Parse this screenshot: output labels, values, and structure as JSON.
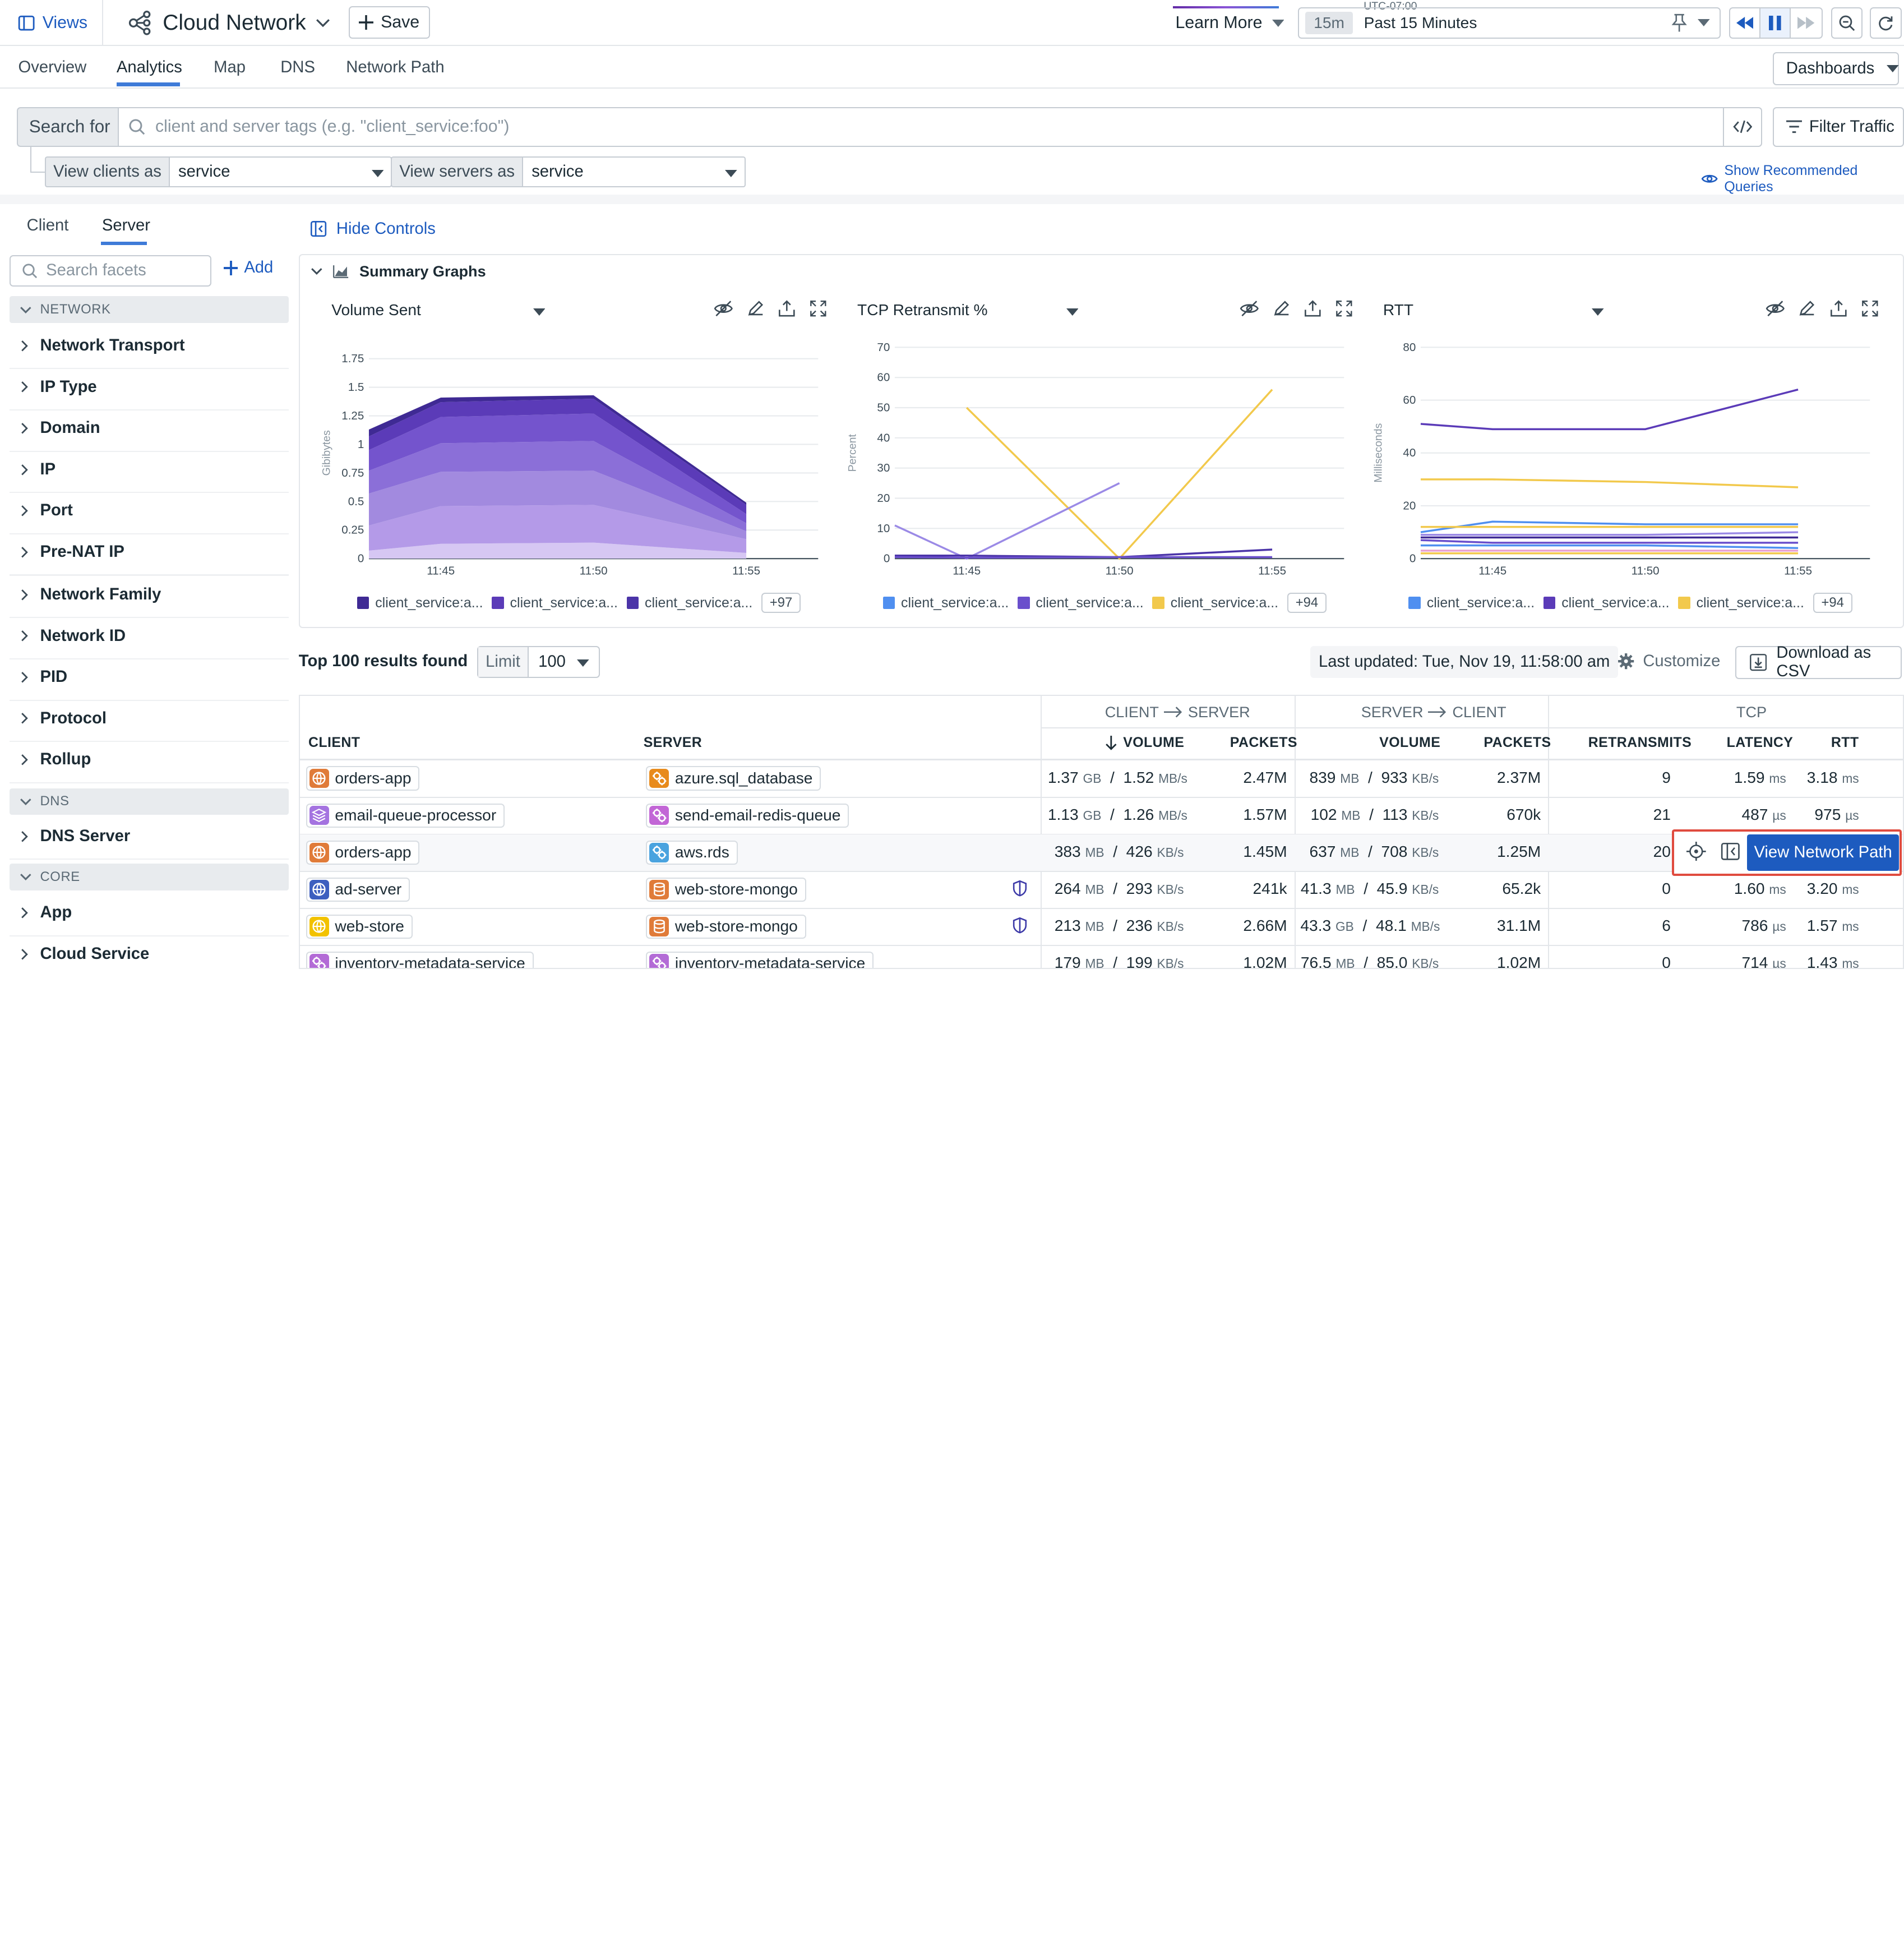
{
  "topbar": {
    "views_label": "Views",
    "title": "Cloud Network",
    "save_label": "Save",
    "learn_more": "Learn More",
    "timezone": "UTC-07:00",
    "time_chip": "15m",
    "time_label": "Past 15 Minutes"
  },
  "tabs": [
    "Overview",
    "Analytics",
    "Map",
    "DNS",
    "Network Path"
  ],
  "dashboards_label": "Dashboards",
  "search": {
    "prefix": "Search for",
    "placeholder": "client and server tags (e.g. \"client_service:foo\")",
    "filter_label": "Filter Traffic",
    "view_clients_label": "View clients as",
    "view_clients_value": "service",
    "view_servers_label": "View servers as",
    "view_servers_value": "service",
    "show_recommended": "Show Recommended Queries"
  },
  "facets_panel": {
    "tabs": [
      "Client",
      "Server"
    ],
    "search_placeholder": "Search facets",
    "add_label": "Add",
    "sections": [
      {
        "title": "NETWORK",
        "items": [
          "Network Transport",
          "IP Type",
          "Domain",
          "IP",
          "Port",
          "Pre-NAT IP",
          "Network Family",
          "Network ID",
          "PID",
          "Protocol",
          "Rollup"
        ]
      },
      {
        "title": "DNS",
        "items": [
          "DNS Server"
        ]
      },
      {
        "title": "CORE",
        "items": [
          "App",
          "Cloud Service"
        ]
      }
    ]
  },
  "controls": {
    "hide_controls": "Hide Controls",
    "summary_graphs": "Summary Graphs"
  },
  "chart_data": [
    {
      "type": "area",
      "title": "Volume Sent",
      "ylabel": "Gibibytes",
      "x": [
        "11:44",
        "11:45",
        "11:50",
        "11:55"
      ],
      "xticks": [
        "11:45",
        "11:50",
        "11:55"
      ],
      "yticks": [
        "0",
        "0.25",
        "0.5",
        "0.75",
        "1",
        "1.25",
        "1.5",
        "1.75"
      ],
      "ylim": [
        0,
        1.85
      ],
      "series": [
        {
          "values": [
            0.07,
            0.13,
            0.14,
            0.05
          ],
          "color": "#d6c7f3"
        },
        {
          "values": [
            0.22,
            0.33,
            0.33,
            0.12
          ],
          "color": "#b49ae8"
        },
        {
          "values": [
            0.28,
            0.3,
            0.3,
            0.07
          ],
          "color": "#a28adf"
        },
        {
          "values": [
            0.2,
            0.25,
            0.26,
            0.07
          ],
          "color": "#8b6fd8"
        },
        {
          "values": [
            0.18,
            0.23,
            0.24,
            0.08
          ],
          "color": "#7454cd"
        },
        {
          "values": [
            0.12,
            0.13,
            0.13,
            0.08
          ],
          "color": "#5b3bb8"
        },
        {
          "values": [
            0.06,
            0.04,
            0.03,
            0.02
          ],
          "color": "#3f2a94"
        }
      ],
      "legend": [
        "client_service:a...",
        "client_service:a...",
        "client_service:a..."
      ],
      "legend_colors": [
        "#3f2a94",
        "#5b3bb8",
        "#4b34a8"
      ],
      "more": "+97"
    },
    {
      "type": "line",
      "title": "TCP Retransmit %",
      "ylabel": "Percent",
      "x": [
        "11:44",
        "11:45",
        "11:50",
        "11:55"
      ],
      "xticks": [
        "11:45",
        "11:50",
        "11:55"
      ],
      "yticks": [
        "0",
        "10",
        "20",
        "30",
        "40",
        "50",
        "60",
        "70"
      ],
      "ylim": [
        0,
        70
      ],
      "series": [
        {
          "points": [
            [
              1,
              50
            ],
            [
              2,
              0
            ],
            [
              3,
              56
            ]
          ],
          "color": "#f2c94c"
        },
        {
          "points": [
            [
              0,
              11
            ],
            [
              1,
              0
            ],
            [
              2,
              25
            ]
          ],
          "color": "#9b8ae6"
        },
        {
          "points": [
            [
              0,
              1
            ],
            [
              1,
              1
            ],
            [
              2,
              0.5
            ],
            [
              3,
              3
            ]
          ],
          "color": "#4b34a8"
        },
        {
          "points": [
            [
              0,
              0.5
            ],
            [
              1,
              0.3
            ],
            [
              2,
              0.5
            ],
            [
              3,
              0.5
            ]
          ],
          "color": "#6a4fcc"
        }
      ],
      "legend": [
        "client_service:a...",
        "client_service:a...",
        "client_service:a..."
      ],
      "legend_colors": [
        "#4f8ff0",
        "#6a4fcc",
        "#f2c94c"
      ],
      "more": "+94"
    },
    {
      "type": "line",
      "title": "RTT",
      "ylabel": "Milliseconds",
      "x": [
        "11:44",
        "11:45",
        "11:50",
        "11:55"
      ],
      "xticks": [
        "11:45",
        "11:50",
        "11:55"
      ],
      "yticks": [
        "0",
        "20",
        "40",
        "60",
        "80"
      ],
      "ylim": [
        0,
        80
      ],
      "series": [
        {
          "points": [
            [
              0,
              51
            ],
            [
              1,
              49
            ],
            [
              2,
              49
            ],
            [
              3,
              64
            ]
          ],
          "color": "#5b3bb8"
        },
        {
          "points": [
            [
              0,
              30
            ],
            [
              1,
              30
            ],
            [
              2,
              29
            ],
            [
              3,
              27
            ]
          ],
          "color": "#f2c94c"
        },
        {
          "points": [
            [
              0,
              10
            ],
            [
              1,
              14
            ],
            [
              2,
              13
            ],
            [
              3,
              13
            ]
          ],
          "color": "#4f8ff0"
        },
        {
          "points": [
            [
              0,
              12
            ],
            [
              1,
              12
            ],
            [
              2,
              12
            ],
            [
              3,
              12
            ]
          ],
          "color": "#f2c94c"
        },
        {
          "points": [
            [
              0,
              9
            ],
            [
              1,
              9
            ],
            [
              2,
              9
            ],
            [
              3,
              10
            ]
          ],
          "color": "#9b8ae6"
        },
        {
          "points": [
            [
              0,
              8
            ],
            [
              1,
              8
            ],
            [
              2,
              8
            ],
            [
              3,
              8
            ]
          ],
          "color": "#3f2a94"
        },
        {
          "points": [
            [
              0,
              7
            ],
            [
              1,
              6
            ],
            [
              2,
              6
            ],
            [
              3,
              6
            ]
          ],
          "color": "#6a4fcc"
        },
        {
          "points": [
            [
              0,
              5
            ],
            [
              1,
              5
            ],
            [
              2,
              5
            ],
            [
              3,
              4
            ]
          ],
          "color": "#4f8ff0"
        },
        {
          "points": [
            [
              0,
              3
            ],
            [
              1,
              3
            ],
            [
              2,
              3
            ],
            [
              3,
              3
            ]
          ],
          "color": "#e8a0d0"
        },
        {
          "points": [
            [
              0,
              2
            ],
            [
              1,
              2
            ],
            [
              2,
              2
            ],
            [
              3,
              2
            ]
          ],
          "color": "#f2c94c"
        }
      ],
      "legend": [
        "client_service:a...",
        "client_service:a...",
        "client_service:a..."
      ],
      "legend_colors": [
        "#4f8ff0",
        "#5b3bb8",
        "#f2c94c"
      ],
      "more": "+94"
    }
  ],
  "results": {
    "count_label": "Top 100 results found",
    "limit_label": "Limit",
    "limit_value": "100",
    "last_updated": "Last updated: Tue, Nov 19, 11:58:00 am",
    "customize": "Customize",
    "download": "Download as CSV"
  },
  "table": {
    "group_headers": [
      "CLIENT",
      "SERVER",
      "SERVER",
      "CLIENT",
      "TCP"
    ],
    "columns": [
      "CLIENT",
      "SERVER",
      "VOLUME",
      "PACKETS",
      "VOLUME",
      "PACKETS",
      "RETRANSMITS",
      "LATENCY",
      "RTT"
    ],
    "rows": [
      {
        "client": "orders-app",
        "client_icon": "globe-icon",
        "client_color": "#e07b39",
        "server": "azure.sql_database",
        "server_icon": "cogs-icon",
        "server_color": "#e88b1c",
        "cs_vol": "1.37",
        "cs_vol_u": "GB",
        "cs_rate": "1.52",
        "cs_rate_u": "MB/s",
        "cs_pk": "2.47M",
        "sc_vol": "839",
        "sc_vol_u": "MB",
        "sc_rate": "933",
        "sc_rate_u": "KB/s",
        "sc_pk": "2.37M",
        "retrans": "9",
        "lat": "1.59",
        "lat_u": "ms",
        "rtt": "3.18",
        "rtt_u": "ms",
        "shield": false
      },
      {
        "client": "email-queue-processor",
        "client_icon": "layers-icon",
        "client_color": "#a473e0",
        "server": "send-email-redis-queue",
        "server_icon": "cogs-icon",
        "server_color": "#c266d6",
        "cs_vol": "1.13",
        "cs_vol_u": "GB",
        "cs_rate": "1.26",
        "cs_rate_u": "MB/s",
        "cs_pk": "1.57M",
        "sc_vol": "102",
        "sc_vol_u": "MB",
        "sc_rate": "113",
        "sc_rate_u": "KB/s",
        "sc_pk": "670k",
        "retrans": "21",
        "lat": "487",
        "lat_u": "µs",
        "rtt": "975",
        "rtt_u": "µs",
        "shield": false
      },
      {
        "client": "orders-app",
        "client_icon": "globe-icon",
        "client_color": "#e07b39",
        "server": "aws.rds",
        "server_icon": "cogs-icon",
        "server_color": "#4aa3df",
        "cs_vol": "383",
        "cs_vol_u": "MB",
        "cs_rate": "426",
        "cs_rate_u": "KB/s",
        "cs_pk": "1.45M",
        "sc_vol": "637",
        "sc_vol_u": "MB",
        "sc_rate": "708",
        "sc_rate_u": "KB/s",
        "sc_pk": "1.25M",
        "retrans": "20",
        "lat": "",
        "lat_u": "",
        "rtt": "",
        "rtt_u": "",
        "shield": false
      },
      {
        "client": "ad-server",
        "client_icon": "globe-icon",
        "client_color": "#3d5fbf",
        "server": "web-store-mongo",
        "server_icon": "database-icon",
        "server_color": "#e07b39",
        "cs_vol": "264",
        "cs_vol_u": "MB",
        "cs_rate": "293",
        "cs_rate_u": "KB/s",
        "cs_pk": "241k",
        "sc_vol": "41.3",
        "sc_vol_u": "MB",
        "sc_rate": "45.9",
        "sc_rate_u": "KB/s",
        "sc_pk": "65.2k",
        "retrans": "0",
        "lat": "1.60",
        "lat_u": "ms",
        "rtt": "3.20",
        "rtt_u": "ms",
        "shield": true
      },
      {
        "client": "web-store",
        "client_icon": "globe-icon",
        "client_color": "#f2c200",
        "server": "web-store-mongo",
        "server_icon": "database-icon",
        "server_color": "#e07b39",
        "cs_vol": "213",
        "cs_vol_u": "MB",
        "cs_rate": "236",
        "cs_rate_u": "KB/s",
        "cs_pk": "2.66M",
        "sc_vol": "43.3",
        "sc_vol_u": "GB",
        "sc_rate": "48.1",
        "sc_rate_u": "MB/s",
        "sc_pk": "31.1M",
        "retrans": "6",
        "lat": "786",
        "lat_u": "µs",
        "rtt": "1.57",
        "rtt_u": "ms",
        "shield": true
      },
      {
        "client": "inventory-metadata-service",
        "client_icon": "cogs-icon",
        "client_color": "#b36bd6",
        "server": "inventory-metadata-service",
        "server_icon": "cogs-icon",
        "server_color": "#b36bd6",
        "cs_vol": "179",
        "cs_vol_u": "MB",
        "cs_rate": "199",
        "cs_rate_u": "KB/s",
        "cs_pk": "1.02M",
        "sc_vol": "76.5",
        "sc_vol_u": "MB",
        "sc_rate": "85.0",
        "sc_rate_u": "KB/s",
        "sc_pk": "1.02M",
        "retrans": "0",
        "lat": "714",
        "lat_u": "µs",
        "rtt": "1.43",
        "rtt_u": "ms",
        "shield": false
      }
    ]
  },
  "row_action": {
    "view_network_path": "View Network Path"
  },
  "colors": {
    "accent": "#1d5bbf",
    "tab_underline": "#3e7bd8",
    "highlight_border": "#e04b3f"
  }
}
